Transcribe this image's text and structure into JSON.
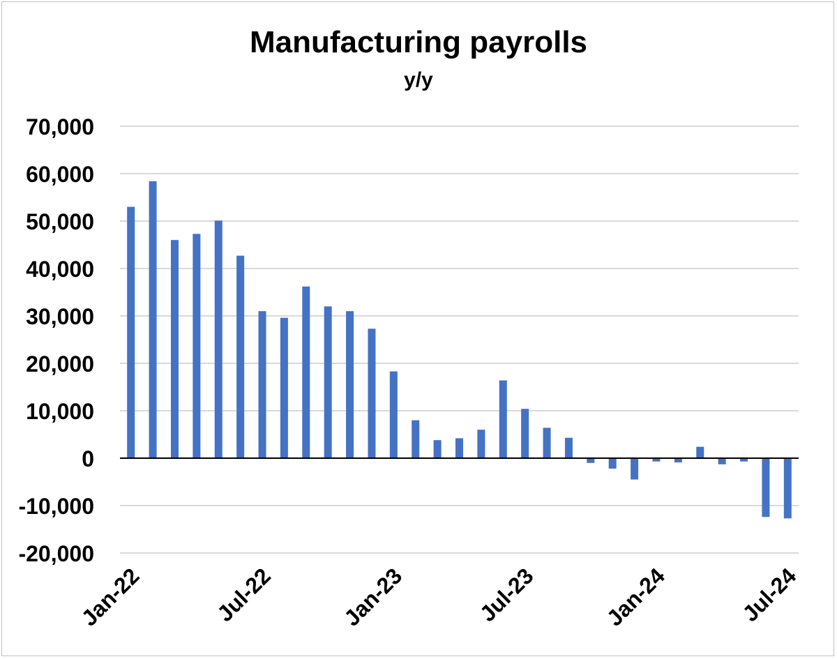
{
  "chart_data": {
    "type": "bar",
    "title": "Manufacturing payrolls",
    "subtitle": "y/y",
    "xlabel": "",
    "ylabel": "",
    "ylim": [
      -20000,
      70000
    ],
    "yticks": [
      70000,
      60000,
      50000,
      40000,
      30000,
      20000,
      10000,
      0,
      -10000,
      -20000
    ],
    "ytick_labels": [
      "70,000",
      "60,000",
      "50,000",
      "40,000",
      "30,000",
      "20,000",
      "10,000",
      "0",
      "-10,000",
      "-20,000"
    ],
    "xtick_labels": [
      {
        "index": 0,
        "label": "Jan-22"
      },
      {
        "index": 6,
        "label": "Jul-22"
      },
      {
        "index": 12,
        "label": "Jan-23"
      },
      {
        "index": 18,
        "label": "Jul-23"
      },
      {
        "index": 24,
        "label": "Jan-24"
      },
      {
        "index": 30,
        "label": "Jul-24"
      }
    ],
    "categories": [
      "Jan-22",
      "Feb-22",
      "Mar-22",
      "Apr-22",
      "May-22",
      "Jun-22",
      "Jul-22",
      "Aug-22",
      "Sep-22",
      "Oct-22",
      "Nov-22",
      "Dec-22",
      "Jan-23",
      "Feb-23",
      "Mar-23",
      "Apr-23",
      "May-23",
      "Jun-23",
      "Jul-23",
      "Aug-23",
      "Sep-23",
      "Oct-23",
      "Nov-23",
      "Dec-23",
      "Jan-24",
      "Feb-24",
      "Mar-24",
      "Apr-24",
      "May-24",
      "Jun-24",
      "Jul-24"
    ],
    "values": [
      53000,
      58400,
      46000,
      47300,
      50100,
      42700,
      31000,
      29600,
      36200,
      32000,
      31000,
      27300,
      18300,
      8000,
      3800,
      4200,
      6000,
      16400,
      10400,
      6400,
      4300,
      -1000,
      -2200,
      -4500,
      -700,
      -900,
      2400,
      -1300,
      -700,
      -12400,
      -12700
    ],
    "bar_color": "#4472c4",
    "grid": true,
    "legend": "none"
  }
}
